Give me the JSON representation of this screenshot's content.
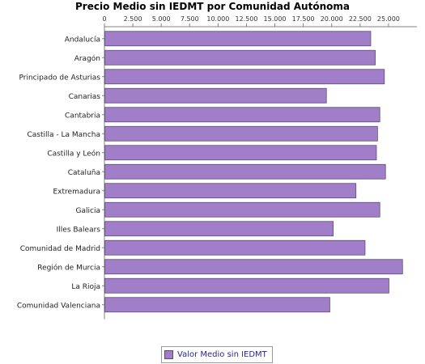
{
  "chart_data": {
    "type": "bar",
    "orientation": "horizontal",
    "title": "Precio Medio sin IEDMT por Comunidad Autónoma",
    "categories": [
      "Andalucía",
      "Aragón",
      "Principado de Asturias",
      "Canarias",
      "Cantabria",
      "Castilla - La Mancha",
      "Castilla y León",
      "Cataluña",
      "Extremadura",
      "Galicia",
      "Illes Balears",
      "Comunidad de Madrid",
      "Región de Murcia",
      "La Rioja",
      "Comunidad Valenciana"
    ],
    "series": [
      {
        "name": "Valor Medio sin IEDMT",
        "values": [
          23400,
          23800,
          24600,
          19500,
          24200,
          24000,
          23900,
          24700,
          22100,
          24200,
          20100,
          22900,
          26200,
          25000,
          19800
        ]
      }
    ],
    "xticks": [
      "0",
      "2.500",
      "5.000",
      "7.500",
      "10.000",
      "12.500",
      "15.000",
      "17.500",
      "20.000",
      "22.500",
      "25.000"
    ],
    "xtick_values": [
      0,
      2500,
      5000,
      7500,
      10000,
      12500,
      15000,
      17500,
      20000,
      22500,
      25000
    ],
    "xlim": [
      0,
      27500
    ],
    "xlabel": "",
    "ylabel": "",
    "grid": false,
    "legend_position": "bottom",
    "colors": {
      "bar_fill": "#a07fc8",
      "bar_stroke": "#5c4a7a",
      "axis": "#808080"
    }
  }
}
